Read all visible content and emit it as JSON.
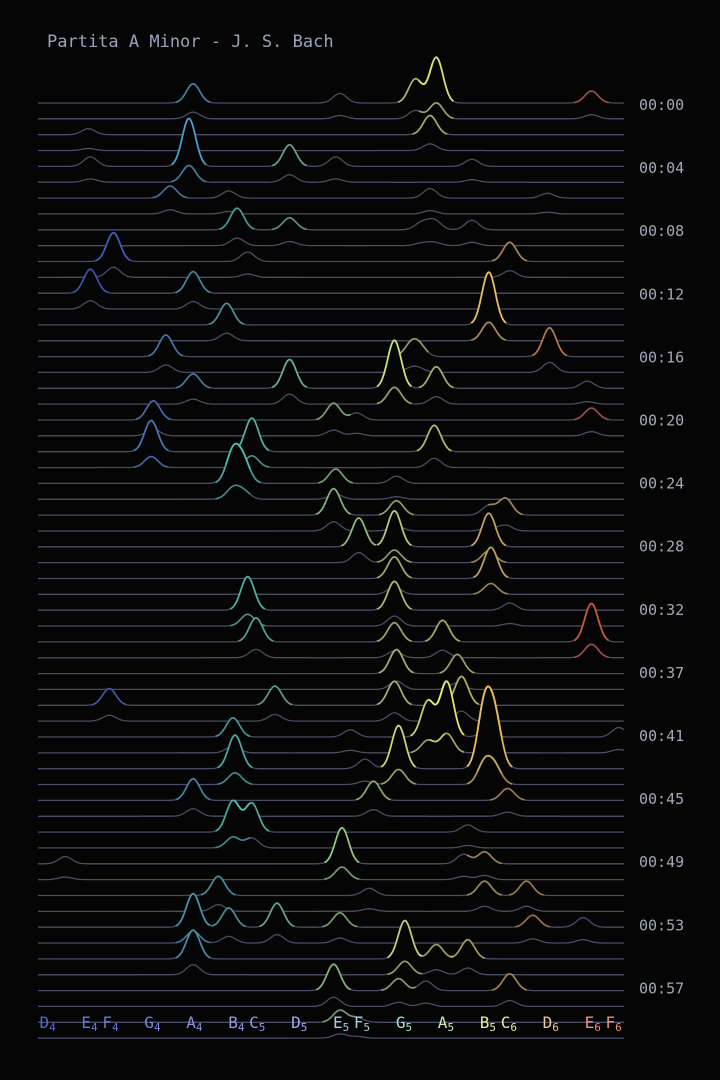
{
  "chart_data": {
    "type": "ridgeline",
    "title": "Partita A Minor - J. S. Bach",
    "xlabel": "",
    "ylabel": "",
    "x_tick_labels": [
      {
        "base": "D",
        "sub": "4",
        "pos": 0.5,
        "color": "#5566dd"
      },
      {
        "base": "E",
        "sub": "4",
        "pos": 2.5,
        "color": "#6677e0"
      },
      {
        "base": "F",
        "sub": "4",
        "pos": 3.5,
        "color": "#6677e0"
      },
      {
        "base": "G",
        "sub": "4",
        "pos": 5.5,
        "color": "#7a86e0"
      },
      {
        "base": "A",
        "sub": "4",
        "pos": 7.5,
        "color": "#8491e6"
      },
      {
        "base": "B",
        "sub": "4",
        "pos": 9.5,
        "color": "#8f9ce8"
      },
      {
        "base": "C",
        "sub": "5",
        "pos": 10.5,
        "color": "#8f9ce8"
      },
      {
        "base": "D",
        "sub": "5",
        "pos": 12.5,
        "color": "#9bb0f0"
      },
      {
        "base": "E",
        "sub": "5",
        "pos": 14.5,
        "color": "#9fd0e8"
      },
      {
        "base": "F",
        "sub": "5",
        "pos": 15.5,
        "color": "#9fd0e8"
      },
      {
        "base": "G",
        "sub": "5",
        "pos": 17.5,
        "color": "#a8e8c8"
      },
      {
        "base": "A",
        "sub": "5",
        "pos": 19.5,
        "color": "#c8f0b0"
      },
      {
        "base": "B",
        "sub": "5",
        "pos": 21.5,
        "color": "#e8f0a0"
      },
      {
        "base": "C",
        "sub": "6",
        "pos": 22.5,
        "color": "#e8f0a0"
      },
      {
        "base": "D",
        "sub": "6",
        "pos": 24.5,
        "color": "#f0c890"
      },
      {
        "base": "E",
        "sub": "6",
        "pos": 26.5,
        "color": "#f09080"
      },
      {
        "base": "F",
        "sub": "6",
        "pos": 27.5,
        "color": "#f09080"
      }
    ],
    "y_tick_labels": [
      "00:00",
      "00:04",
      "00:08",
      "00:12",
      "00:16",
      "00:20",
      "00:24",
      "00:28",
      "00:32",
      "00:37",
      "00:41",
      "00:45",
      "00:49",
      "00:53",
      "00:57"
    ],
    "x_range": [
      0,
      28
    ],
    "n_rows": 60,
    "colormap": [
      "#2a35c8",
      "#4a7ae0",
      "#48c8c0",
      "#9ee890",
      "#e8f070",
      "#e8a050",
      "#e83830"
    ],
    "baseline_color": "#4a4d63",
    "background": "#050505",
    "peaks": [
      [
        0,
        7.4,
        0.8
      ],
      [
        0,
        14.4,
        0.4
      ],
      [
        0,
        18.0,
        1.0
      ],
      [
        0,
        19.0,
        1.9
      ],
      [
        0,
        26.4,
        0.5
      ],
      [
        1,
        2.4,
        0.25
      ],
      [
        1,
        18.7,
        0.8
      ],
      [
        2,
        2.5,
        0.4
      ],
      [
        2,
        7.2,
        2.0
      ],
      [
        2,
        12.0,
        0.9
      ],
      [
        2,
        14.2,
        0.4
      ],
      [
        2,
        20.7,
        0.3
      ],
      [
        3,
        6.3,
        0.5
      ],
      [
        3,
        9.1,
        0.3
      ],
      [
        3,
        18.7,
        0.4
      ],
      [
        3,
        24.3,
        0.2
      ],
      [
        4,
        9.5,
        0.9
      ],
      [
        4,
        12.0,
        0.5
      ],
      [
        4,
        18.3,
        0.3
      ],
      [
        4,
        18.9,
        0.4
      ],
      [
        4,
        20.7,
        0.4
      ],
      [
        5,
        3.6,
        1.2
      ],
      [
        5,
        10.0,
        0.4
      ],
      [
        5,
        22.5,
        0.8
      ],
      [
        6,
        2.5,
        1.0
      ],
      [
        6,
        7.4,
        0.9
      ],
      [
        7,
        9.0,
        0.9
      ],
      [
        7,
        21.5,
        2.2
      ],
      [
        8,
        6.1,
        0.9
      ],
      [
        8,
        17.8,
        0.5
      ],
      [
        8,
        18.2,
        0.4
      ],
      [
        8,
        24.4,
        1.2
      ],
      [
        9,
        7.4,
        0.6
      ],
      [
        9,
        12.0,
        1.2
      ],
      [
        9,
        17.0,
        2.0
      ],
      [
        9,
        19.0,
        0.9
      ],
      [
        9,
        26.2,
        0.3
      ],
      [
        10,
        5.5,
        0.8
      ],
      [
        10,
        14.1,
        0.7
      ],
      [
        10,
        15.2,
        0.3
      ],
      [
        10,
        26.4,
        0.5
      ],
      [
        11,
        5.4,
        1.3
      ],
      [
        11,
        10.2,
        1.4
      ],
      [
        11,
        18.9,
        1.1
      ],
      [
        12,
        9.3,
        1.3
      ],
      [
        12,
        9.8,
        0.9
      ],
      [
        12,
        14.2,
        0.6
      ],
      [
        12,
        17.1,
        0.3
      ],
      [
        13,
        14.1,
        1.1
      ],
      [
        13,
        17.1,
        0.6
      ],
      [
        13,
        21.5,
        0.4
      ],
      [
        13,
        22.3,
        0.7
      ],
      [
        14,
        15.3,
        1.2
      ],
      [
        14,
        17.0,
        1.5
      ],
      [
        14,
        21.5,
        1.4
      ],
      [
        15,
        17.0,
        0.9
      ],
      [
        15,
        21.6,
        1.3
      ],
      [
        16,
        10.0,
        1.4
      ],
      [
        16,
        17.0,
        1.2
      ],
      [
        16,
        22.5,
        0.3
      ],
      [
        17,
        10.4,
        1.0
      ],
      [
        17,
        17.0,
        0.8
      ],
      [
        17,
        19.3,
        0.9
      ],
      [
        17,
        26.4,
        1.6
      ],
      [
        18,
        17.1,
        1.0
      ],
      [
        18,
        20.0,
        0.8
      ],
      [
        19,
        3.4,
        0.7
      ],
      [
        19,
        11.3,
        0.8
      ],
      [
        19,
        17.0,
        1.0
      ],
      [
        19,
        20.2,
        1.2
      ],
      [
        20,
        9.3,
        0.8
      ],
      [
        20,
        14.9,
        0.3
      ],
      [
        20,
        19.5,
        2.3
      ],
      [
        20,
        18.6,
        1.5
      ],
      [
        20,
        21.4,
        0.3
      ],
      [
        20,
        27.7,
        0.4
      ],
      [
        21,
        9.4,
        1.4
      ],
      [
        21,
        17.2,
        1.8
      ],
      [
        21,
        21.3,
        2.6
      ],
      [
        21,
        21.8,
        2.0
      ],
      [
        21,
        15.6,
        0.4
      ],
      [
        22,
        7.4,
        0.9
      ],
      [
        22,
        16.0,
        0.8
      ],
      [
        22,
        22.4,
        0.5
      ],
      [
        23,
        9.3,
        1.3
      ],
      [
        23,
        10.2,
        1.2
      ],
      [
        23,
        20.5,
        0.3
      ],
      [
        24,
        1.3,
        0.3
      ],
      [
        24,
        14.5,
        1.5
      ],
      [
        24,
        20.3,
        0.4
      ],
      [
        24,
        21.3,
        0.5
      ],
      [
        25,
        8.6,
        0.8
      ],
      [
        25,
        15.8,
        0.3
      ],
      [
        25,
        21.3,
        0.6
      ],
      [
        25,
        23.3,
        0.6
      ],
      [
        26,
        7.4,
        1.4
      ],
      [
        26,
        9.1,
        0.8
      ],
      [
        26,
        11.4,
        1.0
      ],
      [
        26,
        14.4,
        0.6
      ],
      [
        26,
        23.6,
        0.5
      ],
      [
        26,
        26.0,
        0.4
      ],
      [
        27,
        7.4,
        1.2
      ],
      [
        27,
        17.5,
        1.6
      ],
      [
        27,
        19.0,
        0.6
      ],
      [
        27,
        20.5,
        0.8
      ],
      [
        28,
        14.1,
        1.1
      ],
      [
        28,
        17.2,
        0.5
      ],
      [
        28,
        22.5,
        0.7
      ],
      [
        28,
        18.5,
        0.4
      ],
      [
        29,
        14.4,
        0.5
      ],
      [
        29,
        15.2,
        0.2
      ],
      [
        30,
        14.4,
        0.3
      ],
      [
        30,
        26.3,
        0.2
      ]
    ]
  }
}
